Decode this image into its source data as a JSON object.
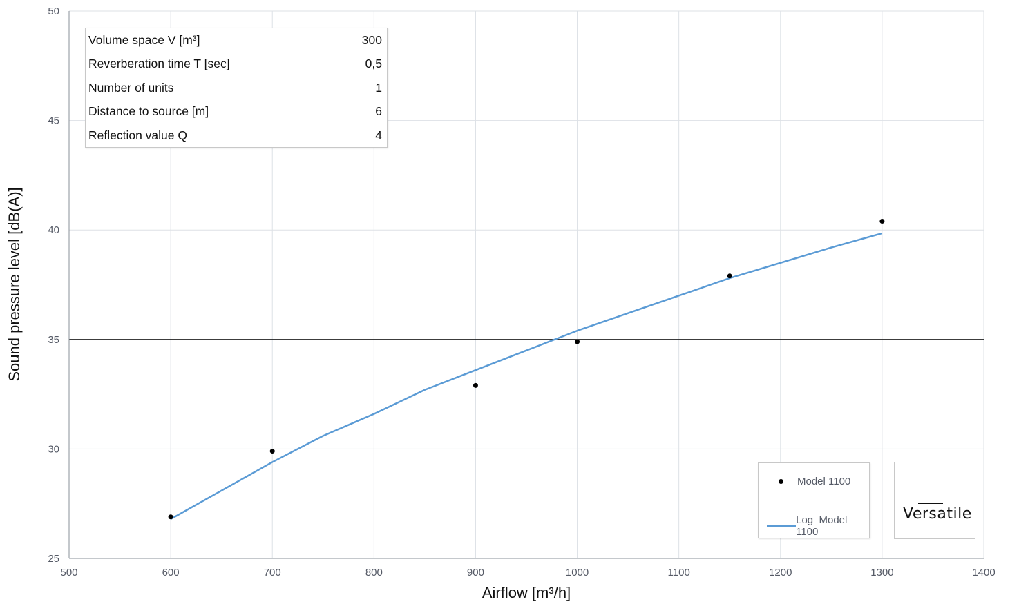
{
  "chart_data": {
    "type": "scatter",
    "xlabel": "Airflow [m³/h]",
    "ylabel": "Sound pressure level [dB(A)]",
    "xlim": [
      500,
      1400
    ],
    "ylim": [
      25,
      50
    ],
    "xticks": [
      500,
      600,
      700,
      800,
      900,
      1000,
      1100,
      1200,
      1300,
      1400
    ],
    "yticks": [
      25,
      30,
      35,
      40,
      45,
      50
    ],
    "grid": true,
    "reference_line_y": 35,
    "legend_position": "bottom-right",
    "series": [
      {
        "name": "Model 1100",
        "type": "scatter",
        "color": "#000000",
        "x": [
          600,
          700,
          900,
          1000,
          1150,
          1300
        ],
        "y": [
          26.9,
          29.9,
          32.9,
          34.9,
          37.9,
          40.4
        ]
      },
      {
        "name": "Log_Model 1100",
        "type": "line",
        "color": "#5b9bd5",
        "x": [
          600,
          650,
          700,
          750,
          800,
          850,
          900,
          950,
          1000,
          1050,
          1100,
          1150,
          1200,
          1250,
          1300
        ],
        "y": [
          26.8,
          28.1,
          29.4,
          30.6,
          31.6,
          32.7,
          33.6,
          34.5,
          35.4,
          36.2,
          37.0,
          37.8,
          38.5,
          39.2,
          39.85
        ]
      }
    ]
  },
  "info_table": [
    {
      "label": "Volume space V [m³]",
      "value": "300"
    },
    {
      "label": "Reverberation time T [sec]",
      "value": "0,5"
    },
    {
      "label": "Number of units",
      "value": "1"
    },
    {
      "label": "Distance to source [m]",
      "value": "6"
    },
    {
      "label": "Reflection value Q",
      "value": "4"
    }
  ],
  "logo": {
    "text": "Versatile"
  }
}
